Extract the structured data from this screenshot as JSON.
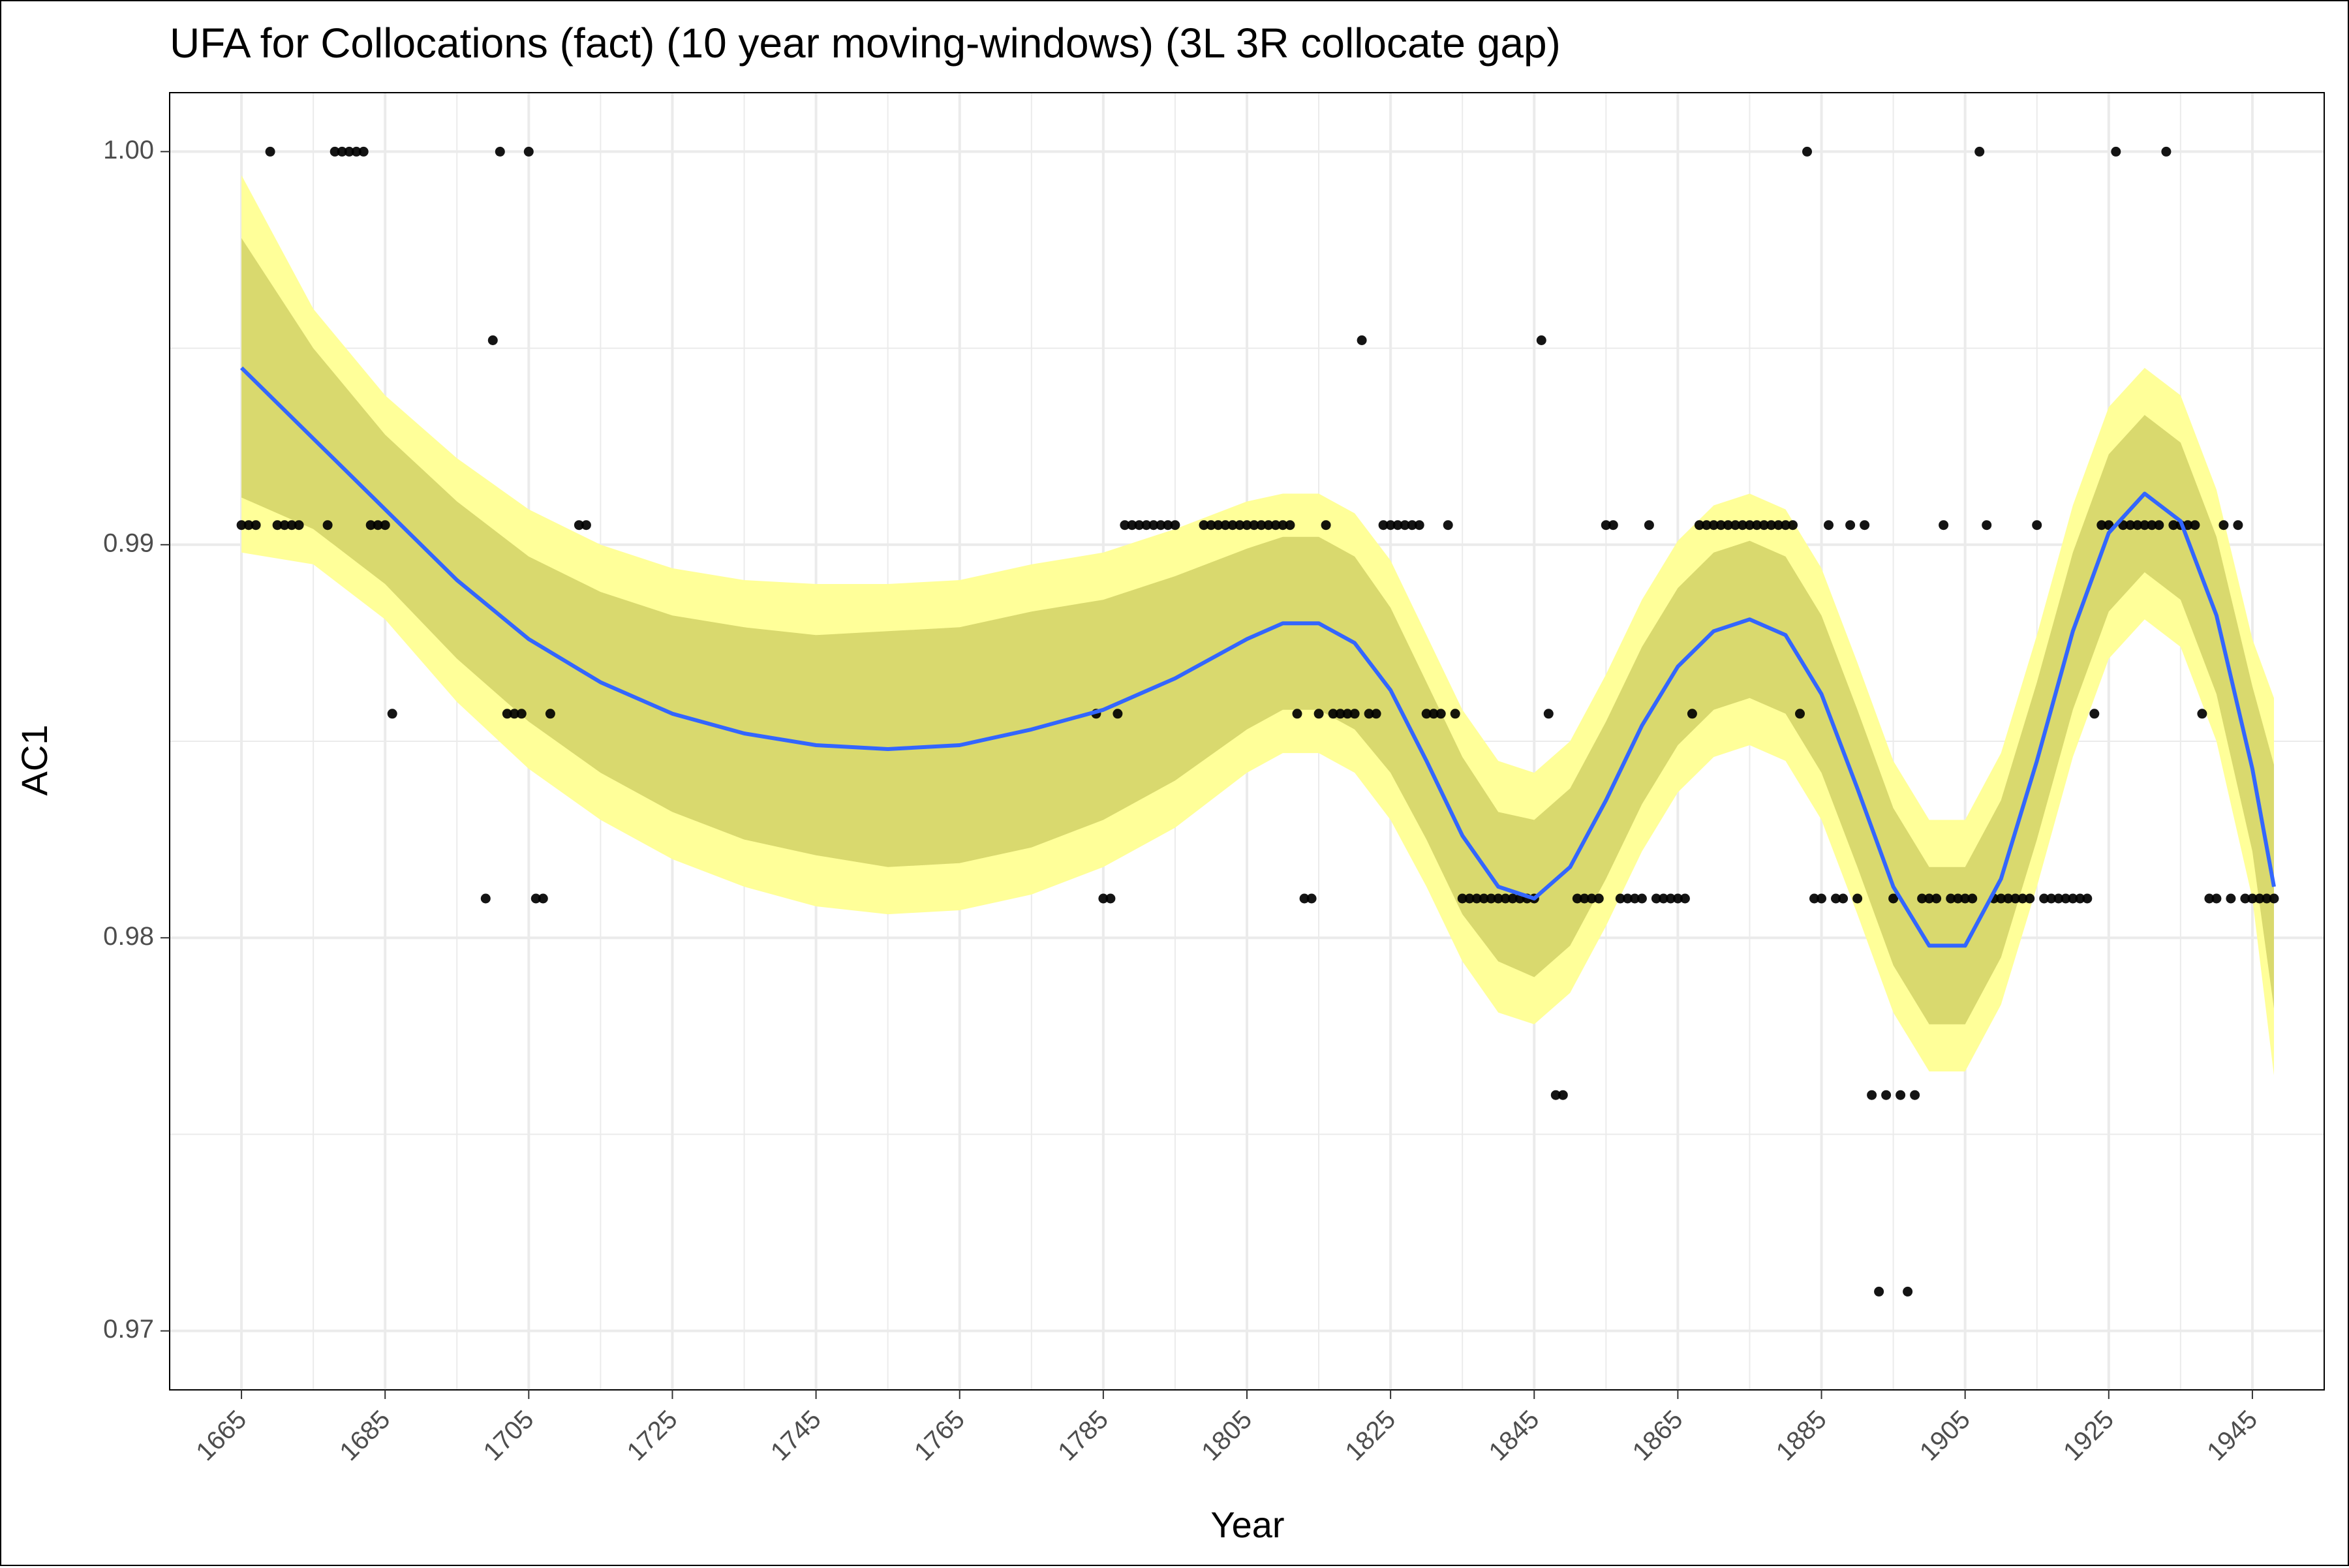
{
  "chart_data": {
    "type": "scatter",
    "title": "UFA for Collocations (fact) (10 year moving-windows) (3L 3R collocate gap)",
    "xlabel": "Year",
    "ylabel": "AC1",
    "xlim": [
      1655,
      1955
    ],
    "ylim": [
      0.9685,
      1.0015
    ],
    "x_ticks": [
      1665,
      1685,
      1705,
      1725,
      1745,
      1765,
      1785,
      1805,
      1825,
      1845,
      1865,
      1885,
      1905,
      1925,
      1945
    ],
    "x_tick_labels": [
      "1665",
      "1685",
      "1705",
      "1725",
      "1745",
      "1765",
      "1785",
      "1805",
      "1825",
      "1845",
      "1865",
      "1885",
      "1905",
      "1925",
      "1945"
    ],
    "y_ticks": [
      0.97,
      0.98,
      0.99,
      1.0
    ],
    "y_tick_labels": [
      "0.97",
      "0.98",
      "0.99",
      "1.00"
    ],
    "grid": true,
    "colors": {
      "points": "#000000",
      "smooth_line": "#3366ff",
      "band_outer": "#ffff99",
      "band_inner": "#d9d96e",
      "grid": "#ebebeb",
      "frame": "#000000"
    },
    "points": [
      [
        1665,
        0.9905
      ],
      [
        1666,
        0.9905
      ],
      [
        1667,
        0.9905
      ],
      [
        1669,
        1.0
      ],
      [
        1670,
        0.9905
      ],
      [
        1671,
        0.9905
      ],
      [
        1672,
        0.9905
      ],
      [
        1673,
        0.9905
      ],
      [
        1677,
        0.9905
      ],
      [
        1678,
        1.0
      ],
      [
        1679,
        1.0
      ],
      [
        1680,
        1.0
      ],
      [
        1681,
        1.0
      ],
      [
        1682,
        1.0
      ],
      [
        1683,
        0.9905
      ],
      [
        1684,
        0.9905
      ],
      [
        1685,
        0.9905
      ],
      [
        1686,
        0.9857
      ],
      [
        1699,
        0.981
      ],
      [
        1700,
        0.9952
      ],
      [
        1701,
        1.0
      ],
      [
        1702,
        0.9857
      ],
      [
        1703,
        0.9857
      ],
      [
        1704,
        0.9857
      ],
      [
        1705,
        1.0
      ],
      [
        1706,
        0.981
      ],
      [
        1707,
        0.981
      ],
      [
        1708,
        0.9857
      ],
      [
        1712,
        0.9905
      ],
      [
        1713,
        0.9905
      ],
      [
        1784,
        0.9857
      ],
      [
        1785,
        0.981
      ],
      [
        1786,
        0.981
      ],
      [
        1787,
        0.9857
      ],
      [
        1788,
        0.9905
      ],
      [
        1789,
        0.9905
      ],
      [
        1790,
        0.9905
      ],
      [
        1791,
        0.9905
      ],
      [
        1792,
        0.9905
      ],
      [
        1793,
        0.9905
      ],
      [
        1794,
        0.9905
      ],
      [
        1795,
        0.9905
      ],
      [
        1799,
        0.9905
      ],
      [
        1800,
        0.9905
      ],
      [
        1801,
        0.9905
      ],
      [
        1802,
        0.9905
      ],
      [
        1803,
        0.9905
      ],
      [
        1804,
        0.9905
      ],
      [
        1805,
        0.9905
      ],
      [
        1806,
        0.9905
      ],
      [
        1807,
        0.9905
      ],
      [
        1808,
        0.9905
      ],
      [
        1809,
        0.9905
      ],
      [
        1810,
        0.9905
      ],
      [
        1811,
        0.9905
      ],
      [
        1812,
        0.9857
      ],
      [
        1813,
        0.981
      ],
      [
        1814,
        0.981
      ],
      [
        1815,
        0.9857
      ],
      [
        1816,
        0.9905
      ],
      [
        1817,
        0.9857
      ],
      [
        1818,
        0.9857
      ],
      [
        1819,
        0.9857
      ],
      [
        1820,
        0.9857
      ],
      [
        1821,
        0.9952
      ],
      [
        1822,
        0.9857
      ],
      [
        1823,
        0.9857
      ],
      [
        1824,
        0.9905
      ],
      [
        1825,
        0.9905
      ],
      [
        1826,
        0.9905
      ],
      [
        1827,
        0.9905
      ],
      [
        1828,
        0.9905
      ],
      [
        1829,
        0.9905
      ],
      [
        1830,
        0.9857
      ],
      [
        1831,
        0.9857
      ],
      [
        1832,
        0.9857
      ],
      [
        1833,
        0.9905
      ],
      [
        1834,
        0.9857
      ],
      [
        1835,
        0.981
      ],
      [
        1836,
        0.981
      ],
      [
        1837,
        0.981
      ],
      [
        1838,
        0.981
      ],
      [
        1839,
        0.981
      ],
      [
        1840,
        0.981
      ],
      [
        1841,
        0.981
      ],
      [
        1842,
        0.981
      ],
      [
        1843,
        0.981
      ],
      [
        1844,
        0.981
      ],
      [
        1845,
        0.981
      ],
      [
        1846,
        0.9952
      ],
      [
        1847,
        0.9857
      ],
      [
        1848,
        0.976
      ],
      [
        1849,
        0.976
      ],
      [
        1851,
        0.981
      ],
      [
        1852,
        0.981
      ],
      [
        1853,
        0.981
      ],
      [
        1854,
        0.981
      ],
      [
        1855,
        0.9905
      ],
      [
        1856,
        0.9905
      ],
      [
        1857,
        0.981
      ],
      [
        1858,
        0.981
      ],
      [
        1859,
        0.981
      ],
      [
        1860,
        0.981
      ],
      [
        1861,
        0.9905
      ],
      [
        1862,
        0.981
      ],
      [
        1863,
        0.981
      ],
      [
        1864,
        0.981
      ],
      [
        1865,
        0.981
      ],
      [
        1866,
        0.981
      ],
      [
        1867,
        0.9857
      ],
      [
        1868,
        0.9905
      ],
      [
        1869,
        0.9905
      ],
      [
        1870,
        0.9905
      ],
      [
        1871,
        0.9905
      ],
      [
        1872,
        0.9905
      ],
      [
        1873,
        0.9905
      ],
      [
        1874,
        0.9905
      ],
      [
        1875,
        0.9905
      ],
      [
        1876,
        0.9905
      ],
      [
        1877,
        0.9905
      ],
      [
        1878,
        0.9905
      ],
      [
        1879,
        0.9905
      ],
      [
        1880,
        0.9905
      ],
      [
        1881,
        0.9905
      ],
      [
        1882,
        0.9857
      ],
      [
        1883,
        1.0
      ],
      [
        1884,
        0.981
      ],
      [
        1885,
        0.981
      ],
      [
        1886,
        0.9905
      ],
      [
        1887,
        0.981
      ],
      [
        1888,
        0.981
      ],
      [
        1889,
        0.9905
      ],
      [
        1890,
        0.981
      ],
      [
        1891,
        0.9905
      ],
      [
        1892,
        0.976
      ],
      [
        1893,
        0.971
      ],
      [
        1894,
        0.976
      ],
      [
        1895,
        0.981
      ],
      [
        1896,
        0.976
      ],
      [
        1897,
        0.971
      ],
      [
        1898,
        0.976
      ],
      [
        1899,
        0.981
      ],
      [
        1900,
        0.981
      ],
      [
        1901,
        0.981
      ],
      [
        1902,
        0.9905
      ],
      [
        1903,
        0.981
      ],
      [
        1904,
        0.981
      ],
      [
        1905,
        0.981
      ],
      [
        1906,
        0.981
      ],
      [
        1907,
        1.0
      ],
      [
        1908,
        0.9905
      ],
      [
        1909,
        0.981
      ],
      [
        1910,
        0.981
      ],
      [
        1911,
        0.981
      ],
      [
        1912,
        0.981
      ],
      [
        1913,
        0.981
      ],
      [
        1914,
        0.981
      ],
      [
        1915,
        0.9905
      ],
      [
        1916,
        0.981
      ],
      [
        1917,
        0.981
      ],
      [
        1918,
        0.981
      ],
      [
        1919,
        0.981
      ],
      [
        1920,
        0.981
      ],
      [
        1921,
        0.981
      ],
      [
        1922,
        0.981
      ],
      [
        1923,
        0.9857
      ],
      [
        1924,
        0.9905
      ],
      [
        1925,
        0.9905
      ],
      [
        1926,
        1.0
      ],
      [
        1927,
        0.9905
      ],
      [
        1928,
        0.9905
      ],
      [
        1929,
        0.9905
      ],
      [
        1930,
        0.9905
      ],
      [
        1931,
        0.9905
      ],
      [
        1932,
        0.9905
      ],
      [
        1933,
        1.0
      ],
      [
        1934,
        0.9905
      ],
      [
        1935,
        0.9905
      ],
      [
        1936,
        0.9905
      ],
      [
        1937,
        0.9905
      ],
      [
        1938,
        0.9857
      ],
      [
        1939,
        0.981
      ],
      [
        1940,
        0.981
      ],
      [
        1941,
        0.9905
      ],
      [
        1942,
        0.981
      ],
      [
        1943,
        0.9905
      ],
      [
        1944,
        0.981
      ],
      [
        1945,
        0.981
      ],
      [
        1946,
        0.981
      ],
      [
        1947,
        0.981
      ],
      [
        1948,
        0.981
      ]
    ],
    "smooth": {
      "x": [
        1665,
        1675,
        1685,
        1695,
        1705,
        1715,
        1725,
        1735,
        1745,
        1755,
        1765,
        1775,
        1785,
        1795,
        1805,
        1810,
        1815,
        1820,
        1825,
        1830,
        1835,
        1840,
        1845,
        1850,
        1855,
        1860,
        1865,
        1870,
        1875,
        1880,
        1885,
        1890,
        1895,
        1900,
        1905,
        1910,
        1915,
        1920,
        1925,
        1930,
        1935,
        1940,
        1945,
        1948
      ],
      "fit": [
        0.9945,
        0.9927,
        0.9909,
        0.9891,
        0.9876,
        0.9865,
        0.9857,
        0.9852,
        0.9849,
        0.9848,
        0.9849,
        0.9853,
        0.9858,
        0.9866,
        0.9876,
        0.988,
        0.988,
        0.9875,
        0.9863,
        0.9845,
        0.9826,
        0.9813,
        0.981,
        0.9818,
        0.9835,
        0.9854,
        0.9869,
        0.9878,
        0.9881,
        0.9877,
        0.9862,
        0.9838,
        0.9813,
        0.9798,
        0.9798,
        0.9815,
        0.9845,
        0.9878,
        0.9903,
        0.9913,
        0.9906,
        0.9882,
        0.9843,
        0.9813
      ],
      "inner_lo": [
        0.9912,
        0.9904,
        0.989,
        0.9871,
        0.9855,
        0.9842,
        0.9832,
        0.9825,
        0.9821,
        0.9818,
        0.9819,
        0.9823,
        0.983,
        0.984,
        0.9853,
        0.9858,
        0.9858,
        0.9853,
        0.9842,
        0.9825,
        0.9806,
        0.9794,
        0.979,
        0.9798,
        0.9815,
        0.9834,
        0.9849,
        0.9858,
        0.9861,
        0.9857,
        0.9842,
        0.9818,
        0.9793,
        0.9778,
        0.9778,
        0.9795,
        0.9825,
        0.9858,
        0.9883,
        0.9893,
        0.9886,
        0.9862,
        0.9822,
        0.9782
      ],
      "inner_hi": [
        0.9978,
        0.995,
        0.9928,
        0.9911,
        0.9897,
        0.9888,
        0.9882,
        0.9879,
        0.9877,
        0.9878,
        0.9879,
        0.9883,
        0.9886,
        0.9892,
        0.9899,
        0.9902,
        0.9902,
        0.9897,
        0.9884,
        0.9865,
        0.9846,
        0.9832,
        0.983,
        0.9838,
        0.9855,
        0.9874,
        0.9889,
        0.9898,
        0.9901,
        0.9897,
        0.9882,
        0.9858,
        0.9833,
        0.9818,
        0.9818,
        0.9835,
        0.9865,
        0.9898,
        0.9923,
        0.9933,
        0.9926,
        0.9902,
        0.9864,
        0.9844
      ],
      "outer_lo": [
        0.9898,
        0.9895,
        0.9881,
        0.986,
        0.9843,
        0.983,
        0.982,
        0.9813,
        0.9808,
        0.9806,
        0.9807,
        0.9811,
        0.9818,
        0.9828,
        0.9842,
        0.9847,
        0.9847,
        0.9842,
        0.983,
        0.9813,
        0.9794,
        0.9781,
        0.9778,
        0.9786,
        0.9803,
        0.9822,
        0.9837,
        0.9846,
        0.9849,
        0.9845,
        0.983,
        0.9806,
        0.9781,
        0.9766,
        0.9766,
        0.9783,
        0.9813,
        0.9846,
        0.9871,
        0.9881,
        0.9874,
        0.985,
        0.981,
        0.9765
      ],
      "outer_hi": [
        0.9994,
        0.996,
        0.9938,
        0.9922,
        0.9909,
        0.99,
        0.9894,
        0.9891,
        0.989,
        0.989,
        0.9891,
        0.9895,
        0.9898,
        0.9904,
        0.9911,
        0.9913,
        0.9913,
        0.9908,
        0.9896,
        0.9877,
        0.9858,
        0.9845,
        0.9842,
        0.985,
        0.9867,
        0.9886,
        0.9901,
        0.991,
        0.9913,
        0.9909,
        0.9894,
        0.987,
        0.9845,
        0.983,
        0.983,
        0.9847,
        0.9877,
        0.991,
        0.9935,
        0.9945,
        0.9938,
        0.9914,
        0.9876,
        0.9861
      ]
    }
  }
}
